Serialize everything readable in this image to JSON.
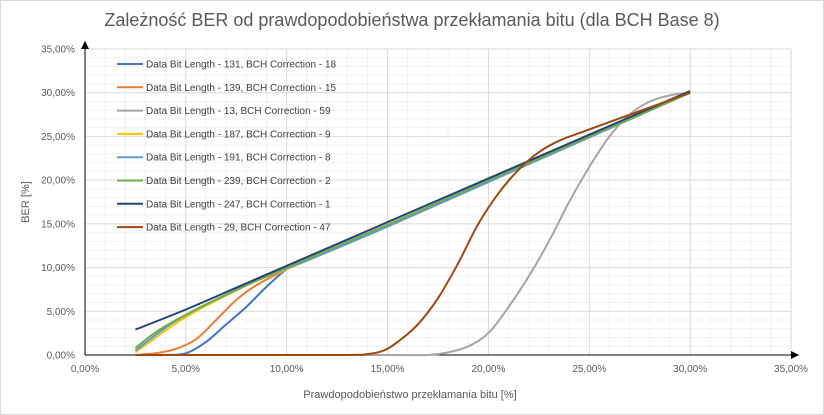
{
  "chart_data": {
    "type": "line",
    "title": "Zależność BER od prawdopodobieństwa przekłamania bitu (dla BCH Base 8)",
    "xlabel": "Prawdopodobieństwo przekłamania bitu [%]",
    "ylabel": "BER [%]",
    "xlim": [
      0,
      35
    ],
    "ylim": [
      0,
      35
    ],
    "x_ticks": [
      "0,00%",
      "5,00%",
      "10,00%",
      "15,00%",
      "20,00%",
      "25,00%",
      "30,00%",
      "35,00%"
    ],
    "y_ticks": [
      "0,00%",
      "5,00%",
      "10,00%",
      "15,00%",
      "20,00%",
      "25,00%",
      "30,00%",
      "35,00%"
    ],
    "grid": true,
    "legend_position": "top-left",
    "series": [
      {
        "name": "Data Bit Length - 131, BCH Correction - 18",
        "color": "#4472C4",
        "points": [
          [
            2.5,
            0
          ],
          [
            4,
            0
          ],
          [
            5,
            0.2
          ],
          [
            6,
            1.5
          ],
          [
            7,
            3.5
          ],
          [
            8,
            5.5
          ],
          [
            9,
            7.8
          ],
          [
            10,
            9.8
          ],
          [
            11,
            10.8
          ],
          [
            15,
            14.7
          ],
          [
            20,
            19.8
          ],
          [
            25,
            24.9
          ],
          [
            30,
            30
          ]
        ]
      },
      {
        "name": "Data Bit Length - 139, BCH Correction - 15",
        "color": "#ED7D31",
        "points": [
          [
            2.5,
            0
          ],
          [
            3.5,
            0.2
          ],
          [
            4.5,
            0.7
          ],
          [
            5.5,
            1.8
          ],
          [
            6.5,
            4
          ],
          [
            7.5,
            6.3
          ],
          [
            8.5,
            8
          ],
          [
            10,
            9.8
          ],
          [
            11,
            10.8
          ],
          [
            15,
            14.7
          ],
          [
            20,
            19.8
          ],
          [
            25,
            24.9
          ],
          [
            30,
            30
          ]
        ]
      },
      {
        "name": "Data Bit Length - 13, BCH Correction - 59",
        "color": "#A5A5A5",
        "points": [
          [
            2.5,
            0
          ],
          [
            15,
            0
          ],
          [
            17,
            0
          ],
          [
            18,
            0.3
          ],
          [
            19,
            1
          ],
          [
            20,
            2.5
          ],
          [
            21,
            5.5
          ],
          [
            22,
            9
          ],
          [
            23,
            13
          ],
          [
            24,
            17.5
          ],
          [
            25,
            21.5
          ],
          [
            26,
            25
          ],
          [
            27,
            27.5
          ],
          [
            28,
            29
          ],
          [
            29,
            29.7
          ],
          [
            30,
            30
          ]
        ]
      },
      {
        "name": "Data Bit Length - 187, BCH Correction - 9",
        "color": "#FFC000",
        "points": [
          [
            2.5,
            0.3
          ],
          [
            3.5,
            2
          ],
          [
            4.5,
            3.6
          ],
          [
            5.5,
            5
          ],
          [
            7,
            6.8
          ],
          [
            8.5,
            8.5
          ],
          [
            10,
            9.8
          ],
          [
            11,
            10.8
          ],
          [
            15,
            14.7
          ],
          [
            20,
            19.8
          ],
          [
            25,
            24.9
          ],
          [
            30,
            30
          ]
        ]
      },
      {
        "name": "Data Bit Length - 191, BCH Correction - 8",
        "color": "#5B9BD5",
        "points": [
          [
            2.5,
            0.5
          ],
          [
            3.5,
            2.3
          ],
          [
            4.5,
            3.9
          ],
          [
            5.5,
            5.2
          ],
          [
            7,
            6.9
          ],
          [
            8.5,
            8.5
          ],
          [
            10,
            9.9
          ],
          [
            11,
            10.8
          ],
          [
            15,
            14.7
          ],
          [
            20,
            19.8
          ],
          [
            25,
            24.9
          ],
          [
            30,
            30
          ]
        ]
      },
      {
        "name": "Data Bit Length - 239, BCH Correction - 2",
        "color": "#70AD47",
        "points": [
          [
            2.5,
            0.8
          ],
          [
            3.5,
            2.6
          ],
          [
            5,
            4.6
          ],
          [
            7,
            6.9
          ],
          [
            10,
            10
          ],
          [
            15,
            14.9
          ],
          [
            20,
            20
          ],
          [
            25,
            25
          ],
          [
            30,
            30
          ]
        ]
      },
      {
        "name": "Data Bit Length - 247, BCH Correction - 1",
        "color": "#264478",
        "points": [
          [
            2.5,
            2.9
          ],
          [
            5,
            5.2
          ],
          [
            7.5,
            7.7
          ],
          [
            10,
            10.2
          ],
          [
            15,
            15.2
          ],
          [
            20,
            20.2
          ],
          [
            25,
            25.2
          ],
          [
            30,
            30.2
          ]
        ]
      },
      {
        "name": "Data Bit Length - 29, BCH Correction - 47",
        "color": "#9E480E",
        "points": [
          [
            2.5,
            0
          ],
          [
            10,
            0
          ],
          [
            13,
            0
          ],
          [
            14,
            0.1
          ],
          [
            14.8,
            0.5
          ],
          [
            15.5,
            1.5
          ],
          [
            16.5,
            3.5
          ],
          [
            17.5,
            6.5
          ],
          [
            18.5,
            10.5
          ],
          [
            19.5,
            15
          ],
          [
            20.5,
            18.5
          ],
          [
            21.5,
            21.2
          ],
          [
            22.5,
            23.2
          ],
          [
            23.5,
            24.5
          ],
          [
            25,
            25.8
          ],
          [
            27.5,
            27.9
          ],
          [
            30,
            30
          ]
        ]
      }
    ]
  }
}
